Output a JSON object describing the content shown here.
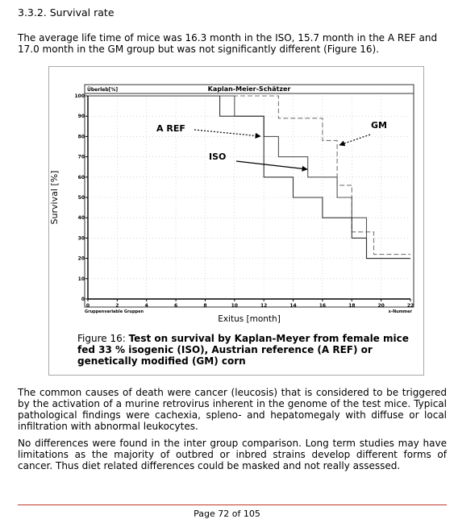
{
  "section": {
    "heading": "3.3.2. Survival rate"
  },
  "intro": "The average life time of mice was 16.3 month in the ISO, 15.7 month in the A REF and 17.0 month in the GM group but was not significantly different (Figure 16).",
  "figure": {
    "caption_prefix": "Figure 16: ",
    "caption_bold": "Test on survival by Kaplan-Meyer from female mice fed 33 % isogenic (ISO), Austrian reference (A REF) or genetically modified (GM) corn"
  },
  "chart_data": {
    "type": "line",
    "step": true,
    "title": "Kaplan-Meier-Schätzer",
    "y_inner_label": "Überleb[%]",
    "ylabel": "Survival [%]",
    "xlabel": "Exitus [month]",
    "group_label": "Gruppenvariable Gruppen",
    "x_end_label": "x-Nummer",
    "xlim": [
      0,
      22
    ],
    "ylim": [
      0,
      100
    ],
    "x_ticks": [
      0,
      2,
      4,
      6,
      8,
      10,
      12,
      14,
      16,
      18,
      20,
      22
    ],
    "y_ticks": [
      0,
      10,
      20,
      30,
      40,
      50,
      60,
      70,
      80,
      90,
      100
    ],
    "grid": true,
    "series": [
      {
        "name": "GM",
        "style": "dashed",
        "x": [
          0,
          13,
          13,
          16,
          16,
          17,
          17,
          18,
          18,
          19.5,
          19.5,
          22
        ],
        "y": [
          100,
          100,
          89,
          89,
          78,
          78,
          56,
          56,
          33,
          33,
          22,
          22
        ]
      },
      {
        "name": "A REF",
        "style": "solid",
        "x": [
          0,
          10,
          10,
          12,
          12,
          13,
          13,
          15,
          15,
          17,
          17,
          18,
          18,
          19,
          19,
          22
        ],
        "y": [
          100,
          100,
          90,
          90,
          80,
          80,
          70,
          70,
          60,
          60,
          50,
          50,
          40,
          40,
          20,
          20
        ]
      },
      {
        "name": "ISO",
        "style": "solid",
        "x": [
          0,
          9,
          9,
          12,
          12,
          14,
          14,
          16,
          16,
          18,
          18,
          19,
          19,
          22
        ],
        "y": [
          100,
          100,
          90,
          90,
          60,
          60,
          50,
          50,
          40,
          40,
          30,
          30,
          20,
          20
        ]
      }
    ],
    "annotations": [
      {
        "text": "A REF"
      },
      {
        "text": "ISO"
      },
      {
        "text": "GM"
      }
    ]
  },
  "causes": "The common causes of death were cancer (leucosis) that is considered to be triggered by the activation of a murine retrovirus inherent in the genome of the test mice. Typical pathological findings were cachexia, spleno- and hepatomegaly with diffuse or local infiltration with abnormal leukocytes.",
  "comparison": "No differences were found in the inter group comparison. Long term studies may have limitations as the majority of outbred or inbred strains develop different forms of cancer. Thus diet related differences could be masked and not really assessed.",
  "footer": {
    "page": "Page 72 of 105"
  }
}
